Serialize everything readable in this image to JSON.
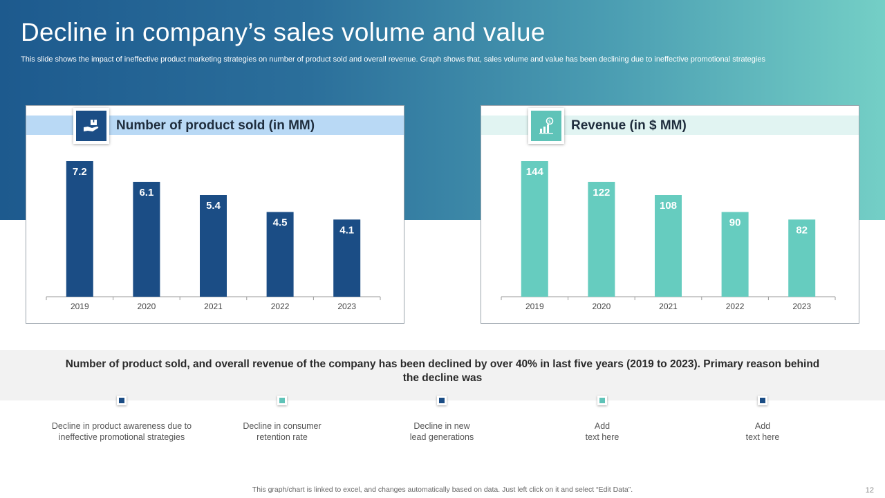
{
  "header": {
    "title": "Decline in company’s sales volume and value",
    "subtitle": "This slide shows the impact of ineffective product marketing strategies on number of product sold and overall revenue. Graph shows that, sales volume and value has been declining due to ineffective promotional strategies"
  },
  "colors": {
    "bar_left": "#1b4d85",
    "bar_right": "#66ccbf",
    "marker_dark": "#1b4d85",
    "marker_teal": "#5fc3b8"
  },
  "chart_data": [
    {
      "type": "bar",
      "title": "Number of product sold (in MM)",
      "icon": "hand-holding-box-icon",
      "categories": [
        "2019",
        "2020",
        "2021",
        "2022",
        "2023"
      ],
      "values": [
        7.2,
        6.1,
        5.4,
        4.5,
        4.1
      ],
      "data_labels": [
        "7.2",
        "6.1",
        "5.4",
        "4.5",
        "4.1"
      ],
      "ylim": [
        0,
        7.2
      ],
      "grid": false
    },
    {
      "type": "bar",
      "title": "Revenue (in $ MM)",
      "icon": "revenue-growth-icon",
      "categories": [
        "2019",
        "2020",
        "2021",
        "2022",
        "2023"
      ],
      "values": [
        144,
        122,
        108,
        90,
        82
      ],
      "data_labels": [
        "144",
        "122",
        "108",
        "90",
        "82"
      ],
      "ylim": [
        0,
        144
      ],
      "grid": false
    }
  ],
  "summary": {
    "text": "Number of product sold, and overall revenue of the company has been declined by over 40% in last five years (2019 to 2023). Primary reason behind the decline was"
  },
  "reasons": [
    {
      "text": "Decline in product awareness due to\nineffective  promotional strategies",
      "marker": "dark"
    },
    {
      "text": "Decline in consumer\nretention rate",
      "marker": "teal"
    },
    {
      "text": "Decline in new\nlead generations",
      "marker": "dark"
    },
    {
      "text": "Add\ntext here",
      "marker": "teal"
    },
    {
      "text": "Add\ntext here",
      "marker": "dark"
    }
  ],
  "footer": {
    "note": "This graph/chart is linked to excel,  and changes automatically based on data. Just left click on it and select “Edit Data”.",
    "page_number": "12"
  }
}
